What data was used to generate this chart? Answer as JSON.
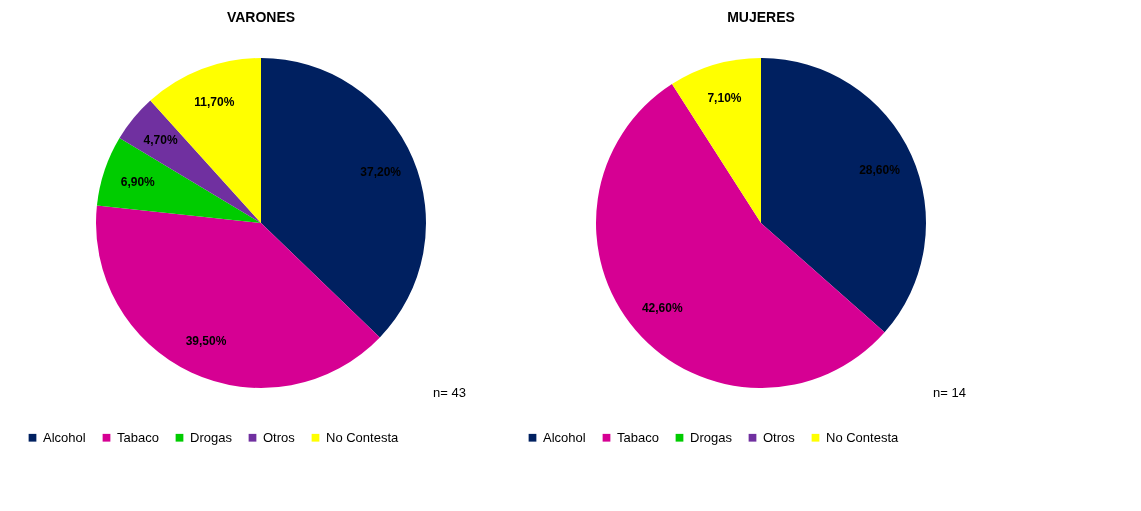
{
  "chart_data": [
    {
      "type": "pie",
      "title": "VARONES",
      "categories": [
        "Alcohol",
        "Tabaco",
        "Drogas",
        "Otros",
        "No Contesta"
      ],
      "values": [
        37.2,
        39.5,
        6.9,
        4.7,
        11.7
      ],
      "colors": [
        "#002060",
        "#d60093",
        "#00cc00",
        "#7030a0",
        "#ffff00"
      ],
      "value_labels": [
        "37,20%",
        "39,50%",
        "6,90%",
        "4,70%",
        "11,70%"
      ],
      "legend": "bottom",
      "annotations": [
        "n= 43"
      ]
    },
    {
      "type": "pie",
      "title": "MUJERES",
      "categories": [
        "Alcohol",
        "Tabaco",
        "Drogas",
        "Otros",
        "No Contesta"
      ],
      "values": [
        28.6,
        42.6,
        0,
        0,
        7.1
      ],
      "colors": [
        "#002060",
        "#d60093",
        "#00cc00",
        "#7030a0",
        "#ffff00"
      ],
      "value_labels": [
        "28,60%",
        "42,60%",
        null,
        null,
        "7,10%"
      ],
      "legend": "bottom",
      "annotations": [
        "n= 14"
      ]
    }
  ]
}
